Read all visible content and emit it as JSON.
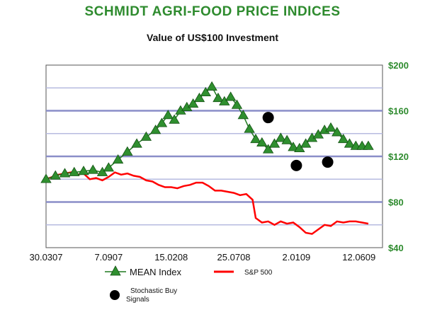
{
  "title": "SCHMIDT AGRI-FOOD PRICE INDICES",
  "subtitle": "Value of US$100 Investment",
  "chart_data": {
    "type": "line",
    "title": "SCHMIDT AGRI-FOOD PRICE INDICES",
    "subtitle": "Value of US$100 Investment",
    "x_tick_labels": [
      "30.0307",
      "7.0907",
      "15.0208",
      "25.0708",
      "2.0109",
      "12.0609"
    ],
    "x_tick_positions": [
      0,
      1,
      2,
      3,
      4,
      5
    ],
    "x_range": [
      0,
      5
    ],
    "y_tick_labels": [
      "$40",
      "$80",
      "$120",
      "$160",
      "$200"
    ],
    "y_ticks": [
      40,
      80,
      120,
      160,
      200
    ],
    "ylim": [
      40,
      200
    ],
    "grid": "horizontal",
    "y_axis_side": "right",
    "series": [
      {
        "name": "MEAN Index",
        "marker": "triangle",
        "color": "#1f7a1f",
        "x": [
          0,
          0.15,
          0.3,
          0.45,
          0.6,
          0.75,
          0.9,
          1.0,
          1.15,
          1.3,
          1.45,
          1.6,
          1.75,
          1.85,
          1.95,
          2.05,
          2.15,
          2.25,
          2.35,
          2.45,
          2.55,
          2.65,
          2.75,
          2.85,
          2.95,
          3.05,
          3.15,
          3.25,
          3.35,
          3.45,
          3.55,
          3.65,
          3.75,
          3.85,
          3.95,
          4.05,
          4.15,
          4.25,
          4.35,
          4.45,
          4.55,
          4.65,
          4.75,
          4.85,
          4.95,
          5.05,
          5.15
        ],
        "values": [
          100,
          103,
          105,
          106,
          107,
          108,
          106,
          110,
          117,
          124,
          131,
          137,
          143,
          149,
          156,
          152,
          160,
          163,
          166,
          171,
          176,
          181,
          171,
          168,
          172,
          165,
          156,
          144,
          135,
          132,
          126,
          131,
          136,
          134,
          128,
          127,
          131,
          136,
          139,
          143,
          145,
          141,
          135,
          131,
          129,
          129,
          129
        ]
      },
      {
        "name": "S&P 500",
        "marker": "none",
        "color": "#ff0000",
        "x": [
          0,
          0.1,
          0.2,
          0.3,
          0.4,
          0.5,
          0.6,
          0.7,
          0.8,
          0.9,
          1.0,
          1.1,
          1.2,
          1.3,
          1.4,
          1.5,
          1.6,
          1.7,
          1.8,
          1.9,
          2.0,
          2.1,
          2.2,
          2.3,
          2.4,
          2.5,
          2.6,
          2.7,
          2.8,
          2.9,
          3.0,
          3.1,
          3.2,
          3.3,
          3.35,
          3.45,
          3.55,
          3.65,
          3.75,
          3.85,
          3.95,
          4.05,
          4.15,
          4.25,
          4.35,
          4.45,
          4.55,
          4.65,
          4.75,
          4.85,
          4.95,
          5.05,
          5.15
        ],
        "values": [
          100,
          102,
          104,
          105,
          106,
          104,
          105,
          100,
          101,
          99,
          102,
          106,
          104,
          105,
          103,
          102,
          99,
          98,
          95,
          93,
          93,
          92,
          94,
          95,
          97,
          97,
          94,
          90,
          90,
          89,
          88,
          86,
          87,
          82,
          66,
          62,
          63,
          60,
          63,
          61,
          62,
          58,
          53,
          52,
          56,
          60,
          59,
          63,
          62,
          63,
          63,
          62,
          61
        ]
      },
      {
        "name": "Stochastic Buy Signals",
        "marker": "circle",
        "color": "#000000",
        "x": [
          3.55,
          4.0,
          4.5
        ],
        "values": [
          154,
          112,
          115
        ]
      }
    ],
    "legend": [
      {
        "label": "MEAN Index",
        "marker": "triangle-line"
      },
      {
        "label": "S&P 500",
        "marker": "red-line"
      },
      {
        "label": "Stochastic Buy Signals",
        "marker": "dot"
      }
    ],
    "legend_position": "bottom-left"
  }
}
